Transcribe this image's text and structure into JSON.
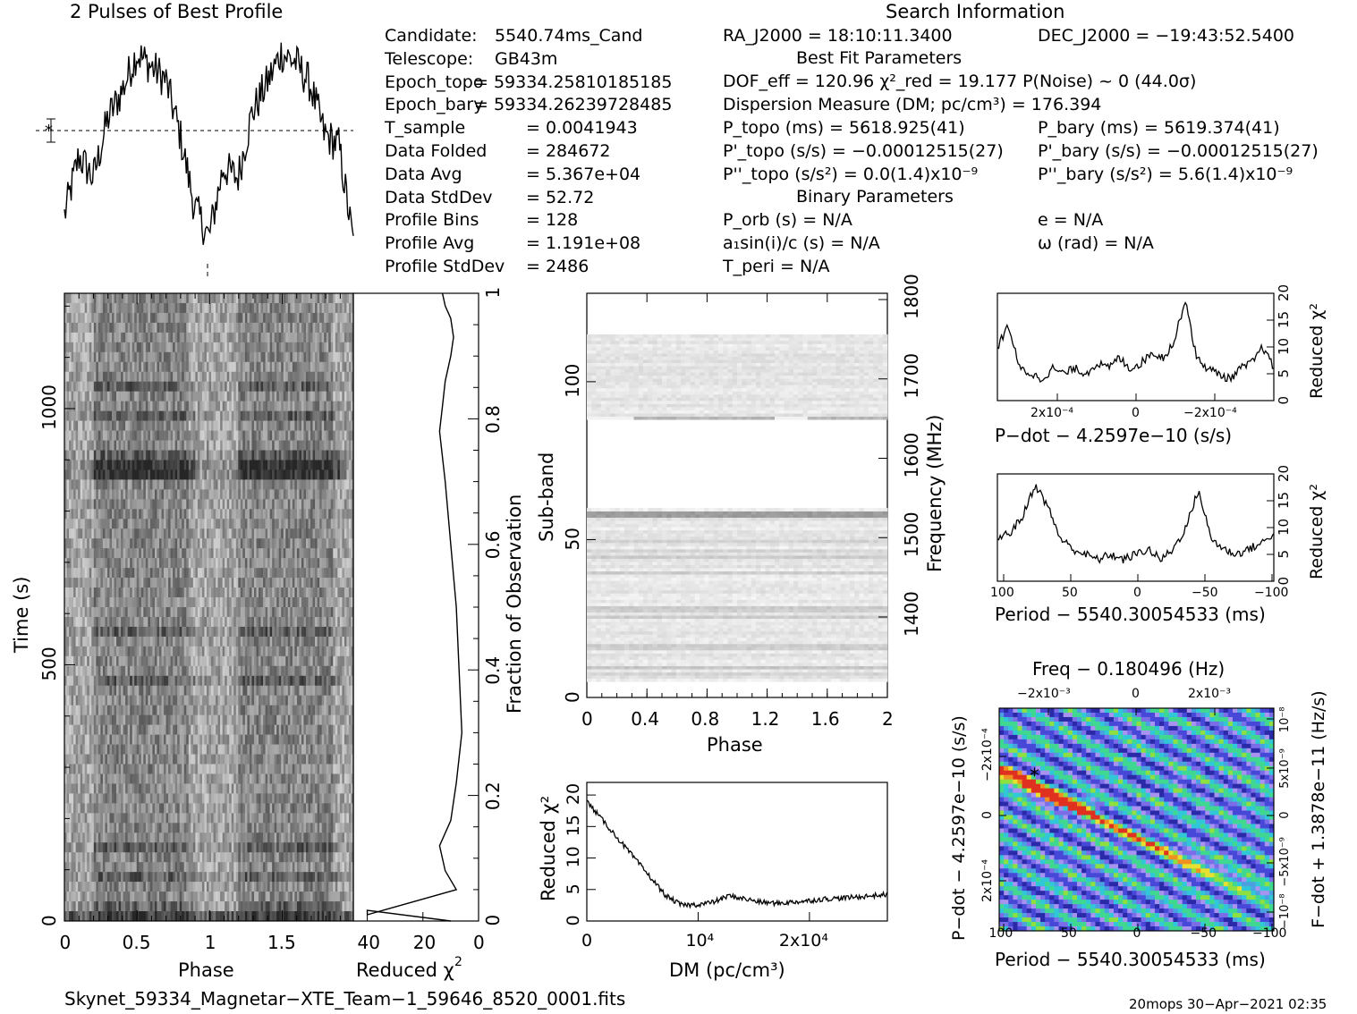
{
  "profile": {
    "title": "2 Pulses of Best Profile"
  },
  "info": {
    "search_title": "Search Information",
    "best_fit_title": "Best Fit Parameters",
    "binary_title": "Binary Parameters",
    "left": [
      {
        "label": "Candidate:",
        "value": "5540.74ms_Cand"
      },
      {
        "label": "Telescope:",
        "value": "GB43m"
      },
      {
        "label": "Epoch_topo",
        "value": "= 59334.25810185185"
      },
      {
        "label": "Epoch_bary",
        "value": "= 59334.26239728485"
      },
      {
        "label": "T_sample",
        "value": "0.0041943"
      },
      {
        "label": "Data Folded",
        "value": "284672"
      },
      {
        "label": "Data Avg",
        "value": "5.367e+04"
      },
      {
        "label": "Data StdDev",
        "value": "52.72"
      },
      {
        "label": "Profile Bins",
        "value": "128"
      },
      {
        "label": "Profile Avg",
        "value": "1.191e+08"
      },
      {
        "label": "Profile StdDev",
        "value": "2486"
      }
    ],
    "ra": "RA_J2000 = 18:10:11.3400",
    "dec": "DEC_J2000 = −19:43:52.5400",
    "dof": "DOF_eff = 120.96  χ²_red = 19.177  P(Noise) ~ 0   (44.0σ)",
    "dm": "Dispersion Measure (DM; pc/cm³) = 176.394",
    "p_topo": "P_topo (ms) =  5618.925(41)",
    "p_bary": "P_bary (ms) =  5619.374(41)",
    "pd_topo": "P'_topo (s/s) = −0.00012515(27)",
    "pd_bary": "P'_bary (s/s) = −0.00012515(27)",
    "pdd_topo": "P''_topo (s/s²) = 0.0(1.4)x10⁻⁹",
    "pdd_bary": "P''_bary (s/s²) =  5.6(1.4)x10⁻⁹",
    "p_orb": "P_orb (s) = N/A",
    "e": "e = N/A",
    "a1": "a₁sin(i)/c (s) = N/A",
    "omega": "ω (rad) = N/A",
    "t_peri": "T_peri = N/A"
  },
  "footer": {
    "filename": "Skynet_59334_Magnetar−XTE_Team−1_59646_8520_0001.fits",
    "stamp": "20mops 30−Apr−2021 02:35"
  },
  "chart_data": [
    {
      "type": "line",
      "title": "2 Pulses of Best Profile",
      "xlabel": "Phase",
      "xlim": [
        0,
        2
      ],
      "description_points": "two pulses; baseline near dashed line, peaks near phase 0.4-0.85 and 1.4-1.85",
      "x": [
        0,
        0.1,
        0.2,
        0.3,
        0.4,
        0.5,
        0.6,
        0.7,
        0.8,
        0.9,
        1.0,
        1.1,
        1.2,
        1.3,
        1.4,
        1.5,
        1.6,
        1.7,
        1.8,
        1.9,
        2.0
      ],
      "y_rel": [
        0.18,
        0.45,
        0.35,
        0.62,
        0.75,
        0.92,
        0.86,
        0.8,
        0.55,
        0.22,
        0.08,
        0.4,
        0.35,
        0.65,
        0.78,
        0.92,
        0.88,
        0.78,
        0.55,
        0.5,
        0.05
      ]
    },
    {
      "type": "heatmap",
      "xlabel": "Phase",
      "ylabel": "Time (s)",
      "xlim": [
        0,
        2
      ],
      "ylim": [
        0,
        1225
      ],
      "x_ticks": [
        "0",
        "0.5",
        "1",
        "1.5"
      ],
      "y_ticks": [
        "0",
        "500",
        "1000"
      ]
    },
    {
      "type": "line",
      "xlabel": "Reduced χ²",
      "ylabel": "Fraction of Observation",
      "x_ticks": [
        "40",
        "20",
        "0"
      ],
      "y_ticks": [
        "0",
        "0.2",
        "0.4",
        "0.6",
        "0.8",
        "1"
      ],
      "x": [
        40,
        8,
        12,
        14,
        10,
        8,
        6,
        7,
        8,
        10,
        12,
        14,
        13,
        12,
        10,
        9,
        10,
        12,
        13
      ],
      "y": [
        0.01,
        0.05,
        0.08,
        0.12,
        0.16,
        0.22,
        0.3,
        0.4,
        0.5,
        0.6,
        0.7,
        0.78,
        0.82,
        0.86,
        0.9,
        0.93,
        0.96,
        0.98,
        1.0
      ]
    },
    {
      "type": "heatmap",
      "xlabel": "Phase",
      "ylabel": "Sub-band",
      "y2label": "Frequency (MHz)",
      "xlim": [
        0,
        2
      ],
      "ylim": [
        0,
        128
      ],
      "x_ticks": [
        "0",
        "0.4",
        "0.8",
        "1.2",
        "1.6",
        "2"
      ],
      "y_ticks": [
        "0",
        "50",
        "100"
      ],
      "y2_ticks": [
        "1400",
        "1500",
        "1600",
        "1700",
        "1800"
      ]
    },
    {
      "type": "line",
      "xlabel": "DM (pc/cm³)",
      "ylabel": "Reduced χ²",
      "x_ticks": [
        "0",
        "10⁴",
        "2x10⁴"
      ],
      "y_ticks": [
        "0",
        "5",
        "10",
        "15",
        "20"
      ],
      "xlim": [
        0,
        27000
      ],
      "ylim": [
        0,
        22
      ],
      "x": [
        0,
        1000,
        2000,
        3000,
        4000,
        5000,
        6000,
        7000,
        8000,
        9000,
        10000,
        12000,
        14000,
        16000,
        18000,
        20000,
        22000,
        24000,
        26000,
        27000
      ],
      "y": [
        19,
        16,
        13,
        10,
        7,
        4,
        2.5,
        2.6,
        3,
        4,
        3.5,
        3,
        2.8,
        3,
        3.2,
        3.5,
        3.6,
        3.8,
        4,
        4.2
      ]
    },
    {
      "type": "line",
      "xlabel": "P−dot − 4.2597e−10 (s/s)",
      "ylabel": "Reduced χ²",
      "x_ticks": [
        "2x10⁻⁴",
        "0",
        "−2x10⁻⁴"
      ],
      "y_ticks": [
        "0",
        "5",
        "10",
        "15",
        "20"
      ],
      "ylim": [
        0,
        20
      ],
      "y": [
        10,
        14,
        6,
        5,
        4,
        6,
        5,
        6,
        5,
        7,
        6,
        8,
        6,
        7,
        9,
        8,
        11,
        19,
        8,
        6,
        5,
        4,
        6,
        7,
        10,
        6
      ]
    },
    {
      "type": "line",
      "xlabel": "Period − 5540.30054533 (ms)",
      "ylabel": "Reduced χ²",
      "x_ticks": [
        "100",
        "50",
        "0",
        "−50",
        "−100"
      ],
      "y_ticks": [
        "0",
        "5",
        "10",
        "15",
        "20"
      ],
      "ylim": [
        0,
        20
      ],
      "y": [
        8,
        9,
        12,
        18,
        14,
        8,
        6,
        5,
        4,
        5,
        4,
        5,
        6,
        4,
        6,
        10,
        17,
        8,
        6,
        5,
        6,
        7,
        9
      ]
    },
    {
      "type": "heatmap",
      "title": "Freq − 0.180496 (Hz)",
      "xlabel": "Period − 5540.30054533 (ms)",
      "ylabel": "P−dot − 4.2597e−10 (s/s)",
      "y2label": "F−dot + 1.3878e−11 (Hz/s)",
      "x_ticks": [
        "100",
        "50",
        "0",
        "−50",
        "−100"
      ],
      "x2_ticks": [
        "−2x10⁻³",
        "0",
        "2x10⁻³"
      ],
      "y_ticks": [
        "−2x10⁻⁴",
        "0",
        "2x10⁻⁴"
      ],
      "y2_ticks": [
        "10⁻⁸",
        "5x10⁻⁹",
        "0",
        "−5x10⁻⁹",
        "−10⁻⁸"
      ]
    }
  ]
}
